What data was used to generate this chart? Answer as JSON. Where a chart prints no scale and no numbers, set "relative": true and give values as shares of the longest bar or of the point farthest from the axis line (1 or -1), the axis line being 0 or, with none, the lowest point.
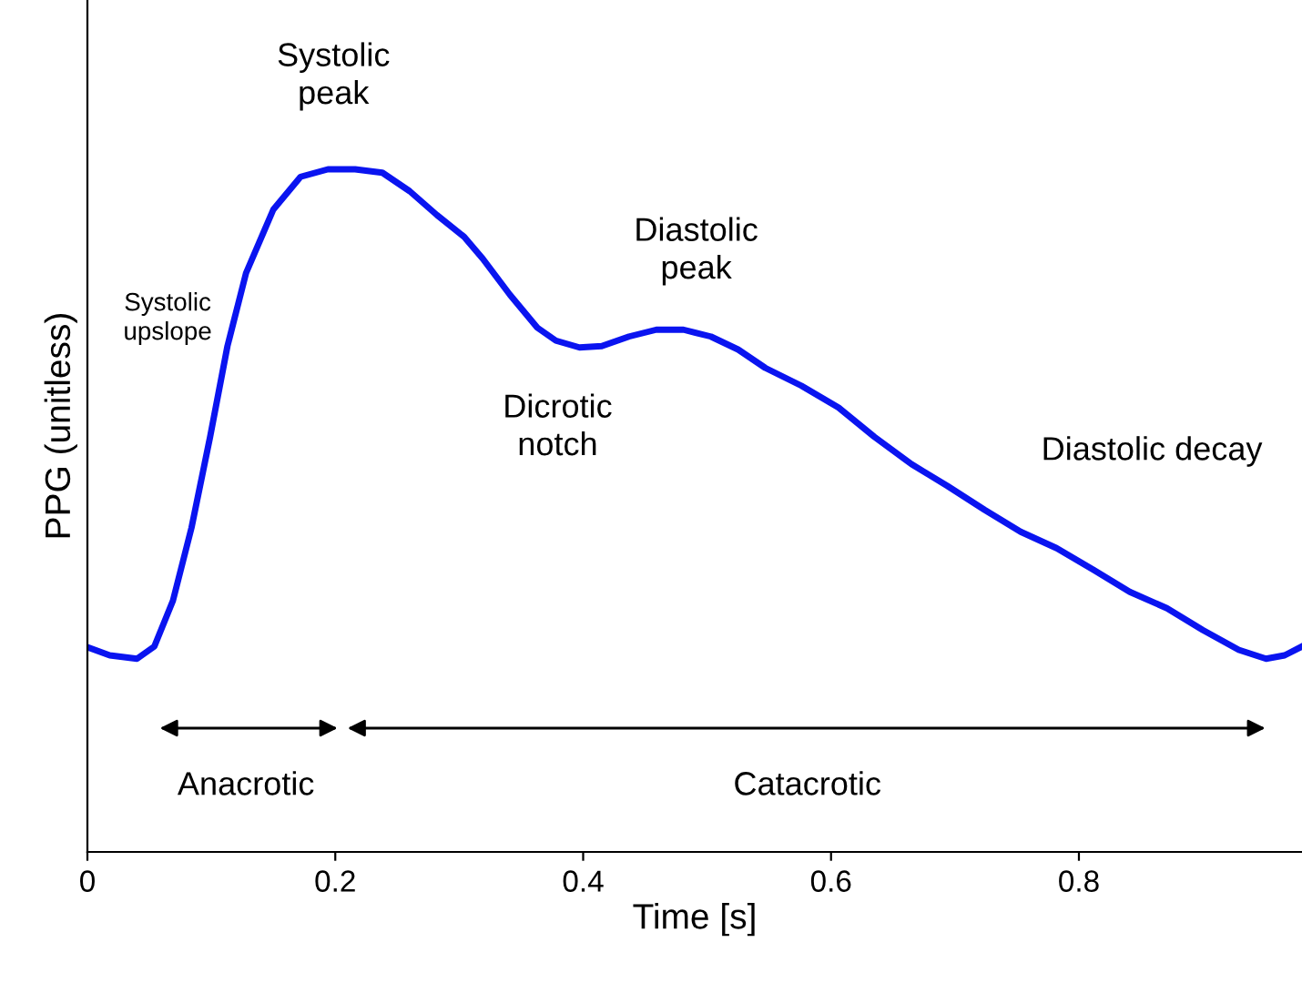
{
  "chart_data": {
    "type": "line",
    "relative": true,
    "xlabel": "Time [s]",
    "ylabel": "PPG (unitless)",
    "x": [
      0.0,
      0.018,
      0.04,
      0.054,
      0.069,
      0.084,
      0.099,
      0.113,
      0.128,
      0.15,
      0.172,
      0.194,
      0.216,
      0.238,
      0.26,
      0.282,
      0.304,
      0.319,
      0.341,
      0.363,
      0.378,
      0.397,
      0.415,
      0.437,
      0.459,
      0.481,
      0.503,
      0.525,
      0.547,
      0.576,
      0.606,
      0.635,
      0.665,
      0.694,
      0.724,
      0.753,
      0.782,
      0.812,
      0.841,
      0.871,
      0.9,
      0.929,
      0.951,
      0.966,
      0.98
    ],
    "series": [
      {
        "color": "#0a14f0",
        "values": [
          0.3,
          0.288,
          0.283,
          0.301,
          0.368,
          0.475,
          0.608,
          0.741,
          0.848,
          0.941,
          0.989,
          1.0,
          1.0,
          0.995,
          0.968,
          0.933,
          0.901,
          0.869,
          0.816,
          0.768,
          0.749,
          0.739,
          0.741,
          0.755,
          0.765,
          0.765,
          0.755,
          0.736,
          0.709,
          0.683,
          0.651,
          0.608,
          0.568,
          0.536,
          0.501,
          0.469,
          0.445,
          0.413,
          0.381,
          0.357,
          0.325,
          0.296,
          0.283,
          0.288,
          0.301
        ]
      }
    ],
    "xlim": [
      0,
      0.98
    ],
    "xticks": [
      0,
      0.2,
      0.4,
      0.6,
      0.8
    ],
    "grid": false,
    "legend": false,
    "marker": "none",
    "line_style": "solid",
    "annotations": [
      "Systolic\npeak",
      "Systolic\nupslope",
      "Diastolic\npeak",
      "Dicrotic\nnotch",
      "Diastolic decay",
      "Anacrotic",
      "Catacrotic"
    ]
  }
}
